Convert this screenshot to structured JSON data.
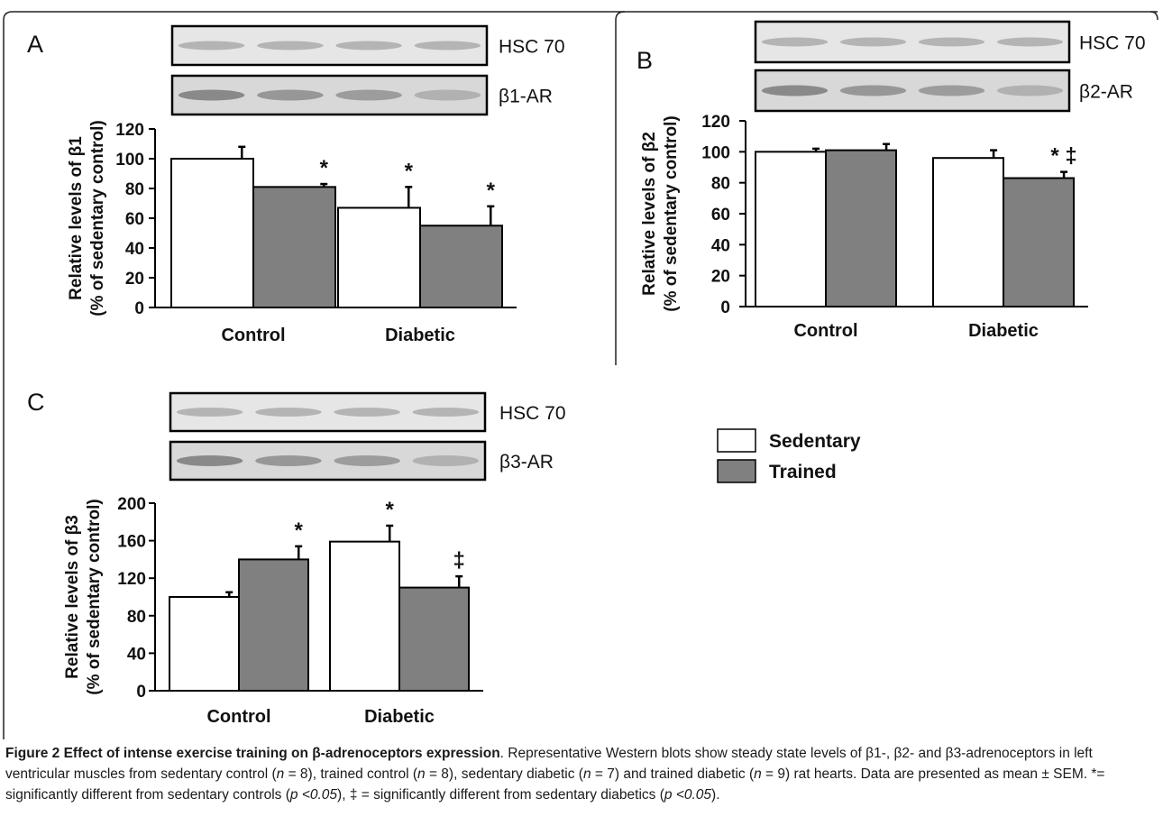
{
  "chart_data": [
    {
      "type": "bar",
      "panel_letter": "A",
      "categories": [
        "Control",
        "Diabetic"
      ],
      "series": [
        {
          "name": "Sedentary",
          "values": [
            100,
            67
          ],
          "errors": [
            8,
            14
          ]
        },
        {
          "name": "Trained",
          "values": [
            81,
            55
          ],
          "errors": [
            2,
            13
          ]
        }
      ],
      "annotations": [
        [
          "",
          "*"
        ],
        [
          "*",
          "*"
        ]
      ],
      "ylabel": [
        "Relative levels of β1",
        "(% of sedentary control)"
      ],
      "yticks": [
        0,
        20,
        40,
        60,
        80,
        100,
        120
      ],
      "ylim": [
        0,
        120
      ],
      "blots": [
        {
          "label": "HSC 70"
        },
        {
          "label": "β1-AR"
        }
      ]
    },
    {
      "type": "bar",
      "panel_letter": "B",
      "categories": [
        "Control",
        "Diabetic"
      ],
      "series": [
        {
          "name": "Sedentary",
          "values": [
            100,
            96
          ],
          "errors": [
            2,
            5
          ]
        },
        {
          "name": "Trained",
          "values": [
            101,
            83
          ],
          "errors": [
            4,
            4
          ]
        }
      ],
      "annotations": [
        [
          "",
          ""
        ],
        [
          "",
          "* ‡"
        ]
      ],
      "ylabel": [
        "Relative levels of β2",
        "(% of sedentary control)"
      ],
      "yticks": [
        0,
        20,
        40,
        60,
        80,
        100,
        120
      ],
      "ylim": [
        0,
        120
      ],
      "blots": [
        {
          "label": "HSC 70"
        },
        {
          "label": "β2-AR"
        }
      ]
    },
    {
      "type": "bar",
      "panel_letter": "C",
      "categories": [
        "Control",
        "Diabetic"
      ],
      "series": [
        {
          "name": "Sedentary",
          "values": [
            100,
            159
          ],
          "errors": [
            5,
            17
          ]
        },
        {
          "name": "Trained",
          "values": [
            140,
            110
          ],
          "errors": [
            14,
            12
          ]
        }
      ],
      "annotations": [
        [
          "",
          "*"
        ],
        [
          "*",
          "‡"
        ]
      ],
      "ylabel": [
        "Relative levels of β3",
        "(% of sedentary control)"
      ],
      "yticks": [
        0,
        40,
        80,
        120,
        160,
        200
      ],
      "ylim": [
        0,
        200
      ],
      "blots": [
        {
          "label": "HSC 70"
        },
        {
          "label": "β3-AR"
        }
      ]
    }
  ],
  "legend": {
    "position": "right",
    "items": [
      {
        "label": "Sedentary",
        "color": "#ffffff"
      },
      {
        "label": "Trained",
        "color": "#808080"
      }
    ]
  },
  "colors": {
    "sedentary": "#ffffff",
    "trained": "#808080",
    "ink": "#000000"
  },
  "caption": {
    "title": "Figure 2 Effect of intense exercise training on β-adrenoceptors expression",
    "body": ". Representative Western blots show steady state levels of β1-, β2- and β3-adrenoceptors in left ventricular muscles from sedentary control (",
    "parts": [
      "n",
      " = 8), trained control (",
      "n",
      " = 8), sedentary diabetic (",
      "n",
      " = 7) and trained diabetic (",
      "n",
      " = 9) rat hearts. Data are presented as mean ± SEM. *= significantly different from sedentary controls (",
      "p <0.05",
      "), ‡ = significantly different from sedentary diabetics (",
      "p <0.05",
      ")."
    ]
  }
}
